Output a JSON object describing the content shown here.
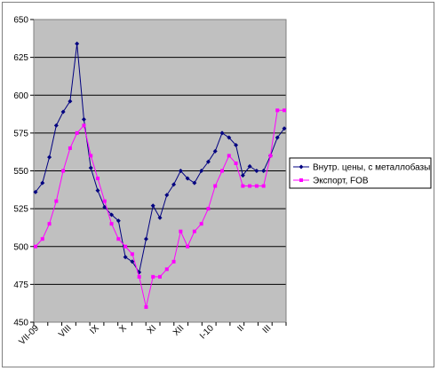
{
  "chart_data": {
    "type": "line",
    "title": "",
    "xlabel": "",
    "ylabel": "",
    "ylim": [
      450,
      650
    ],
    "yticks": [
      450,
      475,
      500,
      525,
      550,
      575,
      600,
      625,
      650
    ],
    "grid": true,
    "plot_background": "#c0c0c0",
    "legend_position": "right",
    "x_tick_labels": [
      "VII-09",
      "VIII",
      "IX",
      "X",
      "XI",
      "XII",
      "I-10",
      "II",
      "III"
    ],
    "series": [
      {
        "name": "Внутр. цены, с металлобазы",
        "color": "#000080",
        "marker": "diamond",
        "values": [
          536,
          542,
          559,
          580,
          589,
          596,
          634,
          584,
          552,
          537,
          526,
          521,
          517,
          493,
          490,
          483,
          505,
          527,
          519,
          534,
          541,
          550,
          545,
          542,
          550,
          556,
          563,
          575,
          572,
          567,
          547,
          553,
          550,
          550,
          560,
          572,
          578
        ]
      },
      {
        "name": "Экспорт, FOB",
        "color": "#ff00ff",
        "marker": "square",
        "values": [
          500,
          505,
          515,
          530,
          550,
          565,
          575,
          580,
          560,
          545,
          530,
          515,
          505,
          500,
          495,
          480,
          460,
          480,
          480,
          485,
          490,
          510,
          500,
          510,
          515,
          525,
          540,
          550,
          560,
          555,
          540,
          540,
          540,
          540,
          560,
          590,
          590
        ]
      }
    ]
  }
}
